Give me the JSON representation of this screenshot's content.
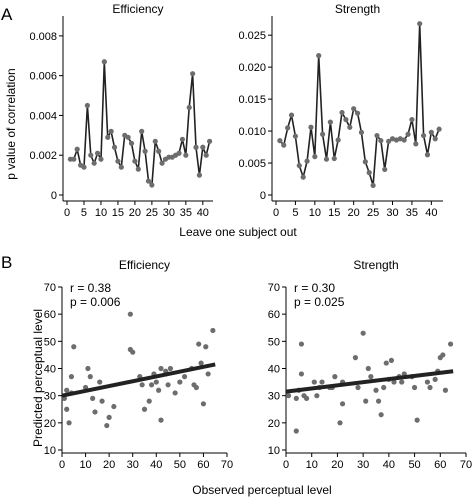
{
  "panels": {
    "A": "A",
    "B": "B"
  },
  "labels": {
    "a_ylabel": "p value of correlation",
    "a_xlabel": "Leave one subject out",
    "b_ylabel": "Predicted perceptual level",
    "b_xlabel": "Observed perceptual level"
  },
  "chart_data": [
    {
      "id": "a1",
      "type": "line",
      "title": "Efficiency",
      "xlim": [
        0,
        43
      ],
      "ylim": [
        0,
        0.009
      ],
      "xticks": [
        0,
        5,
        10,
        15,
        20,
        25,
        30,
        35,
        40
      ],
      "yticks": [
        0,
        0.002,
        0.004,
        0.006,
        0.008
      ],
      "ytick_labels": [
        "0",
        "0.002",
        "0.004",
        "0.006",
        "0.008"
      ],
      "x": [
        1,
        2,
        3,
        4,
        5,
        6,
        7,
        8,
        9,
        10,
        11,
        12,
        13,
        14,
        15,
        16,
        17,
        18,
        19,
        20,
        21,
        22,
        23,
        24,
        25,
        26,
        27,
        28,
        29,
        30,
        31,
        32,
        33,
        34,
        35,
        36,
        37,
        38,
        39,
        40,
        41,
        42
      ],
      "y": [
        0.0018,
        0.0018,
        0.0023,
        0.0015,
        0.0014,
        0.0045,
        0.002,
        0.0016,
        0.0021,
        0.0018,
        0.0067,
        0.0029,
        0.0032,
        0.0024,
        0.0017,
        0.0014,
        0.003,
        0.0029,
        0.0026,
        0.0017,
        0.0013,
        0.0032,
        0.0022,
        0.0007,
        0.0005,
        0.0027,
        0.0022,
        0.0016,
        0.0018,
        0.0019,
        0.0019,
        0.002,
        0.0021,
        0.0028,
        0.002,
        0.0044,
        0.0061,
        0.0024,
        0.001,
        0.0024,
        0.002,
        0.0027
      ]
    },
    {
      "id": "a2",
      "type": "line",
      "title": "Strength",
      "xlim": [
        0,
        43
      ],
      "ylim": [
        0,
        0.028
      ],
      "xticks": [
        0,
        5,
        10,
        15,
        20,
        25,
        30,
        35,
        40
      ],
      "yticks": [
        0,
        0.005,
        0.01,
        0.015,
        0.02,
        0.025
      ],
      "ytick_labels": [
        "0",
        "0.005",
        "0.010",
        "0.015",
        "0.020",
        "0.025"
      ],
      "x": [
        1,
        2,
        3,
        4,
        5,
        6,
        7,
        8,
        9,
        10,
        11,
        12,
        13,
        14,
        15,
        16,
        17,
        18,
        19,
        20,
        21,
        22,
        23,
        24,
        25,
        26,
        27,
        28,
        29,
        30,
        31,
        32,
        33,
        34,
        35,
        36,
        37,
        38,
        39,
        40,
        41,
        42
      ],
      "y": [
        0.0085,
        0.0078,
        0.0105,
        0.0125,
        0.0092,
        0.0046,
        0.0028,
        0.0053,
        0.0106,
        0.006,
        0.0218,
        0.0095,
        0.0056,
        0.0114,
        0.0057,
        0.0086,
        0.0129,
        0.0118,
        0.0106,
        0.0135,
        0.0128,
        0.0098,
        0.0052,
        0.0035,
        0.0015,
        0.0093,
        0.0085,
        0.004,
        0.0084,
        0.0088,
        0.0086,
        0.0088,
        0.0086,
        0.0095,
        0.0118,
        0.008,
        0.0268,
        0.0093,
        0.0063,
        0.0098,
        0.0088,
        0.0103
      ]
    },
    {
      "id": "b1",
      "type": "scatter",
      "title": "Efficiency",
      "xlim": [
        0,
        70
      ],
      "ylim": [
        10,
        70
      ],
      "xticks": [
        0,
        10,
        20,
        30,
        40,
        50,
        60,
        70
      ],
      "yticks": [
        10,
        20,
        30,
        40,
        50,
        60,
        70
      ],
      "annotations": {
        "r": "r = 0.38",
        "p": "p = 0.006"
      },
      "fit": {
        "x": [
          0,
          65
        ],
        "y": [
          30,
          41.5
        ]
      },
      "x": [
        1,
        2,
        2,
        3,
        4,
        4,
        5,
        10,
        11,
        12,
        13,
        14,
        16,
        17,
        19,
        20,
        22,
        29,
        29,
        30,
        33,
        34,
        35,
        37,
        38,
        39,
        40,
        41,
        42,
        42,
        44,
        44,
        45,
        46,
        48,
        50,
        52,
        55,
        56,
        57,
        58,
        59,
        60,
        61,
        62,
        64
      ],
      "y": [
        29,
        32,
        25,
        20,
        37,
        31,
        48,
        33,
        40,
        37,
        29,
        24,
        35,
        28,
        19,
        22,
        26,
        60,
        47,
        46,
        37,
        34,
        25,
        28,
        34,
        38,
        35,
        32,
        40,
        21,
        39,
        38,
        34,
        40,
        31,
        35,
        37,
        40,
        34,
        33,
        49,
        42,
        27,
        48,
        38,
        54
      ]
    },
    {
      "id": "b2",
      "type": "scatter",
      "title": "Strength",
      "xlim": [
        0,
        70
      ],
      "ylim": [
        10,
        70
      ],
      "xticks": [
        0,
        10,
        20,
        30,
        40,
        50,
        60,
        70
      ],
      "yticks": [
        10,
        20,
        30,
        40,
        50,
        60,
        70
      ],
      "annotations": {
        "r": "r = 0.30",
        "p": "p = 0.025"
      },
      "fit": {
        "x": [
          0,
          65
        ],
        "y": [
          31.5,
          39
        ]
      },
      "x": [
        1,
        4,
        4,
        5,
        6,
        6,
        7,
        8,
        11,
        12,
        13,
        14,
        17,
        18,
        19,
        21,
        22,
        22,
        27,
        28,
        30,
        31,
        32,
        33,
        35,
        36,
        37,
        38,
        39,
        40,
        41,
        42,
        44,
        45,
        46,
        49,
        50,
        51,
        55,
        56,
        58,
        59,
        60,
        61,
        62,
        64
      ],
      "y": [
        30,
        29,
        17,
        32,
        49,
        38,
        30,
        29,
        35,
        30,
        33,
        35,
        33,
        33,
        37,
        20,
        35,
        27,
        44,
        33,
        53,
        28,
        40,
        37,
        32,
        28,
        23,
        33,
        42,
        36,
        43,
        35,
        37,
        35,
        38,
        37,
        33,
        21,
        35,
        33,
        36,
        39,
        44,
        45,
        32,
        49
      ]
    }
  ]
}
